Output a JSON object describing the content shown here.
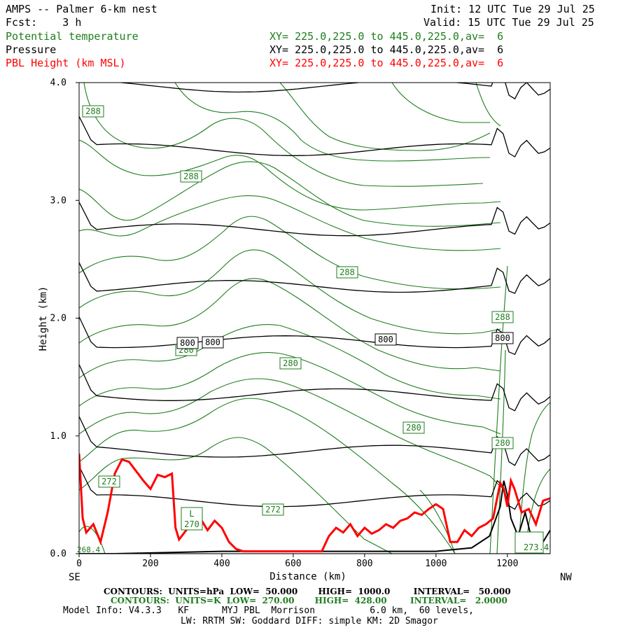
{
  "header": {
    "title": "AMPS -- Palmer 6-km nest",
    "init": "Init: 12 UTC Tue 29 Jul 25",
    "fcst": "Fcst:    3 h",
    "valid": "Valid: 15 UTC Tue 29 Jul 25",
    "fields": [
      {
        "name": "Potential temperature",
        "xy": "XY= 225.0,225.0 to 445.0,225.0,av=  6",
        "color": "#1e7d1e"
      },
      {
        "name": "Pressure",
        "xy": "XY= 225.0,225.0 to 445.0,225.0,av=  6",
        "color": "#000000"
      },
      {
        "name": "PBL Height (km MSL)",
        "xy": "XY= 225.0,225.0 to 445.0,225.0,av=  6",
        "color": "#ff0000"
      }
    ]
  },
  "chart_data": {
    "type": "line",
    "xlabel": "Distance (km)",
    "ylabel": "Height (km)",
    "xlim": [
      0,
      1320
    ],
    "ylim": [
      0,
      4.0
    ],
    "x_ticks": [
      "0",
      "200",
      "400",
      "600",
      "800",
      "1000",
      "1200"
    ],
    "y_ticks": [
      "0.0",
      "1.0",
      "2.0",
      "3.0",
      "4.0"
    ],
    "left_end_label": "SE",
    "right_end_label": "NW",
    "series": [
      {
        "name": "Pressure",
        "units": "hPa",
        "color": "#000000",
        "contour_labels": [
          "800",
          "800",
          "800",
          "800"
        ],
        "levels_km_at_x": [
          0.0,
          0.45,
          0.87,
          1.35,
          1.8,
          2.27,
          2.75,
          3.43,
          3.97
        ],
        "x": [
          0,
          200,
          400,
          600,
          800,
          1000,
          1150,
          1300
        ]
      },
      {
        "name": "Potential temperature",
        "units": "K",
        "color": "#1e7d1e",
        "contour_labels": [
          "288",
          "288",
          "288",
          "280",
          "280",
          "280",
          "280",
          "272",
          "272",
          "270",
          "L",
          "288",
          "280",
          "273.4",
          "268.4"
        ]
      },
      {
        "name": "PBL Height (km MSL)",
        "color": "#ff0000",
        "x": [
          0,
          10,
          20,
          40,
          60,
          80,
          100,
          120,
          140,
          160,
          180,
          200,
          220,
          240,
          260,
          270,
          280,
          300,
          320,
          340,
          360,
          380,
          400,
          420,
          440,
          460,
          500,
          600,
          680,
          700,
          720,
          740,
          760,
          780,
          800,
          820,
          840,
          860,
          880,
          900,
          920,
          940,
          960,
          980,
          1000,
          1020,
          1040,
          1060,
          1080,
          1100,
          1120,
          1140,
          1160,
          1180,
          1190,
          1200,
          1210,
          1220,
          1240,
          1260,
          1280,
          1300,
          1320
        ],
        "values": [
          0.85,
          0.3,
          0.18,
          0.25,
          0.1,
          0.35,
          0.68,
          0.8,
          0.78,
          0.7,
          0.62,
          0.55,
          0.67,
          0.65,
          0.68,
          0.22,
          0.12,
          0.2,
          0.25,
          0.3,
          0.2,
          0.28,
          0.22,
          0.1,
          0.04,
          0.02,
          0.02,
          0.02,
          0.02,
          0.15,
          0.22,
          0.18,
          0.25,
          0.15,
          0.22,
          0.17,
          0.2,
          0.25,
          0.22,
          0.28,
          0.3,
          0.35,
          0.33,
          0.38,
          0.42,
          0.38,
          0.1,
          0.1,
          0.2,
          0.15,
          0.22,
          0.25,
          0.3,
          0.6,
          0.55,
          0.4,
          0.62,
          0.55,
          0.35,
          0.38,
          0.25,
          0.45,
          0.47
        ]
      },
      {
        "name": "Terrain",
        "color": "#000000",
        "x": [
          0,
          100,
          400,
          700,
          1000,
          1100,
          1150,
          1180,
          1190,
          1200,
          1210,
          1230,
          1250,
          1270,
          1290,
          1320
        ],
        "values": [
          0.0,
          0.0,
          0.02,
          0.02,
          0.02,
          0.05,
          0.15,
          0.4,
          0.62,
          0.5,
          0.3,
          0.15,
          0.35,
          0.1,
          0.05,
          0.2
        ]
      }
    ]
  },
  "footer": {
    "line1": "CONTOURS:  UNITS=hPa  LOW=  50.000       HIGH=  1000.0        INTERVAL=   50.000",
    "line2": "CONTOURS:  UNITS=K  LOW=  270.00       HIGH=  428.00        INTERVAL=   2.0000",
    "line3": "Model Info: V4.3.3   KF      MYJ PBL  Morrison          6.0 km,  60 levels,",
    "line4": "LW: RRTM SW: Goddard DIFF: simple KM: 2D Smagor"
  }
}
